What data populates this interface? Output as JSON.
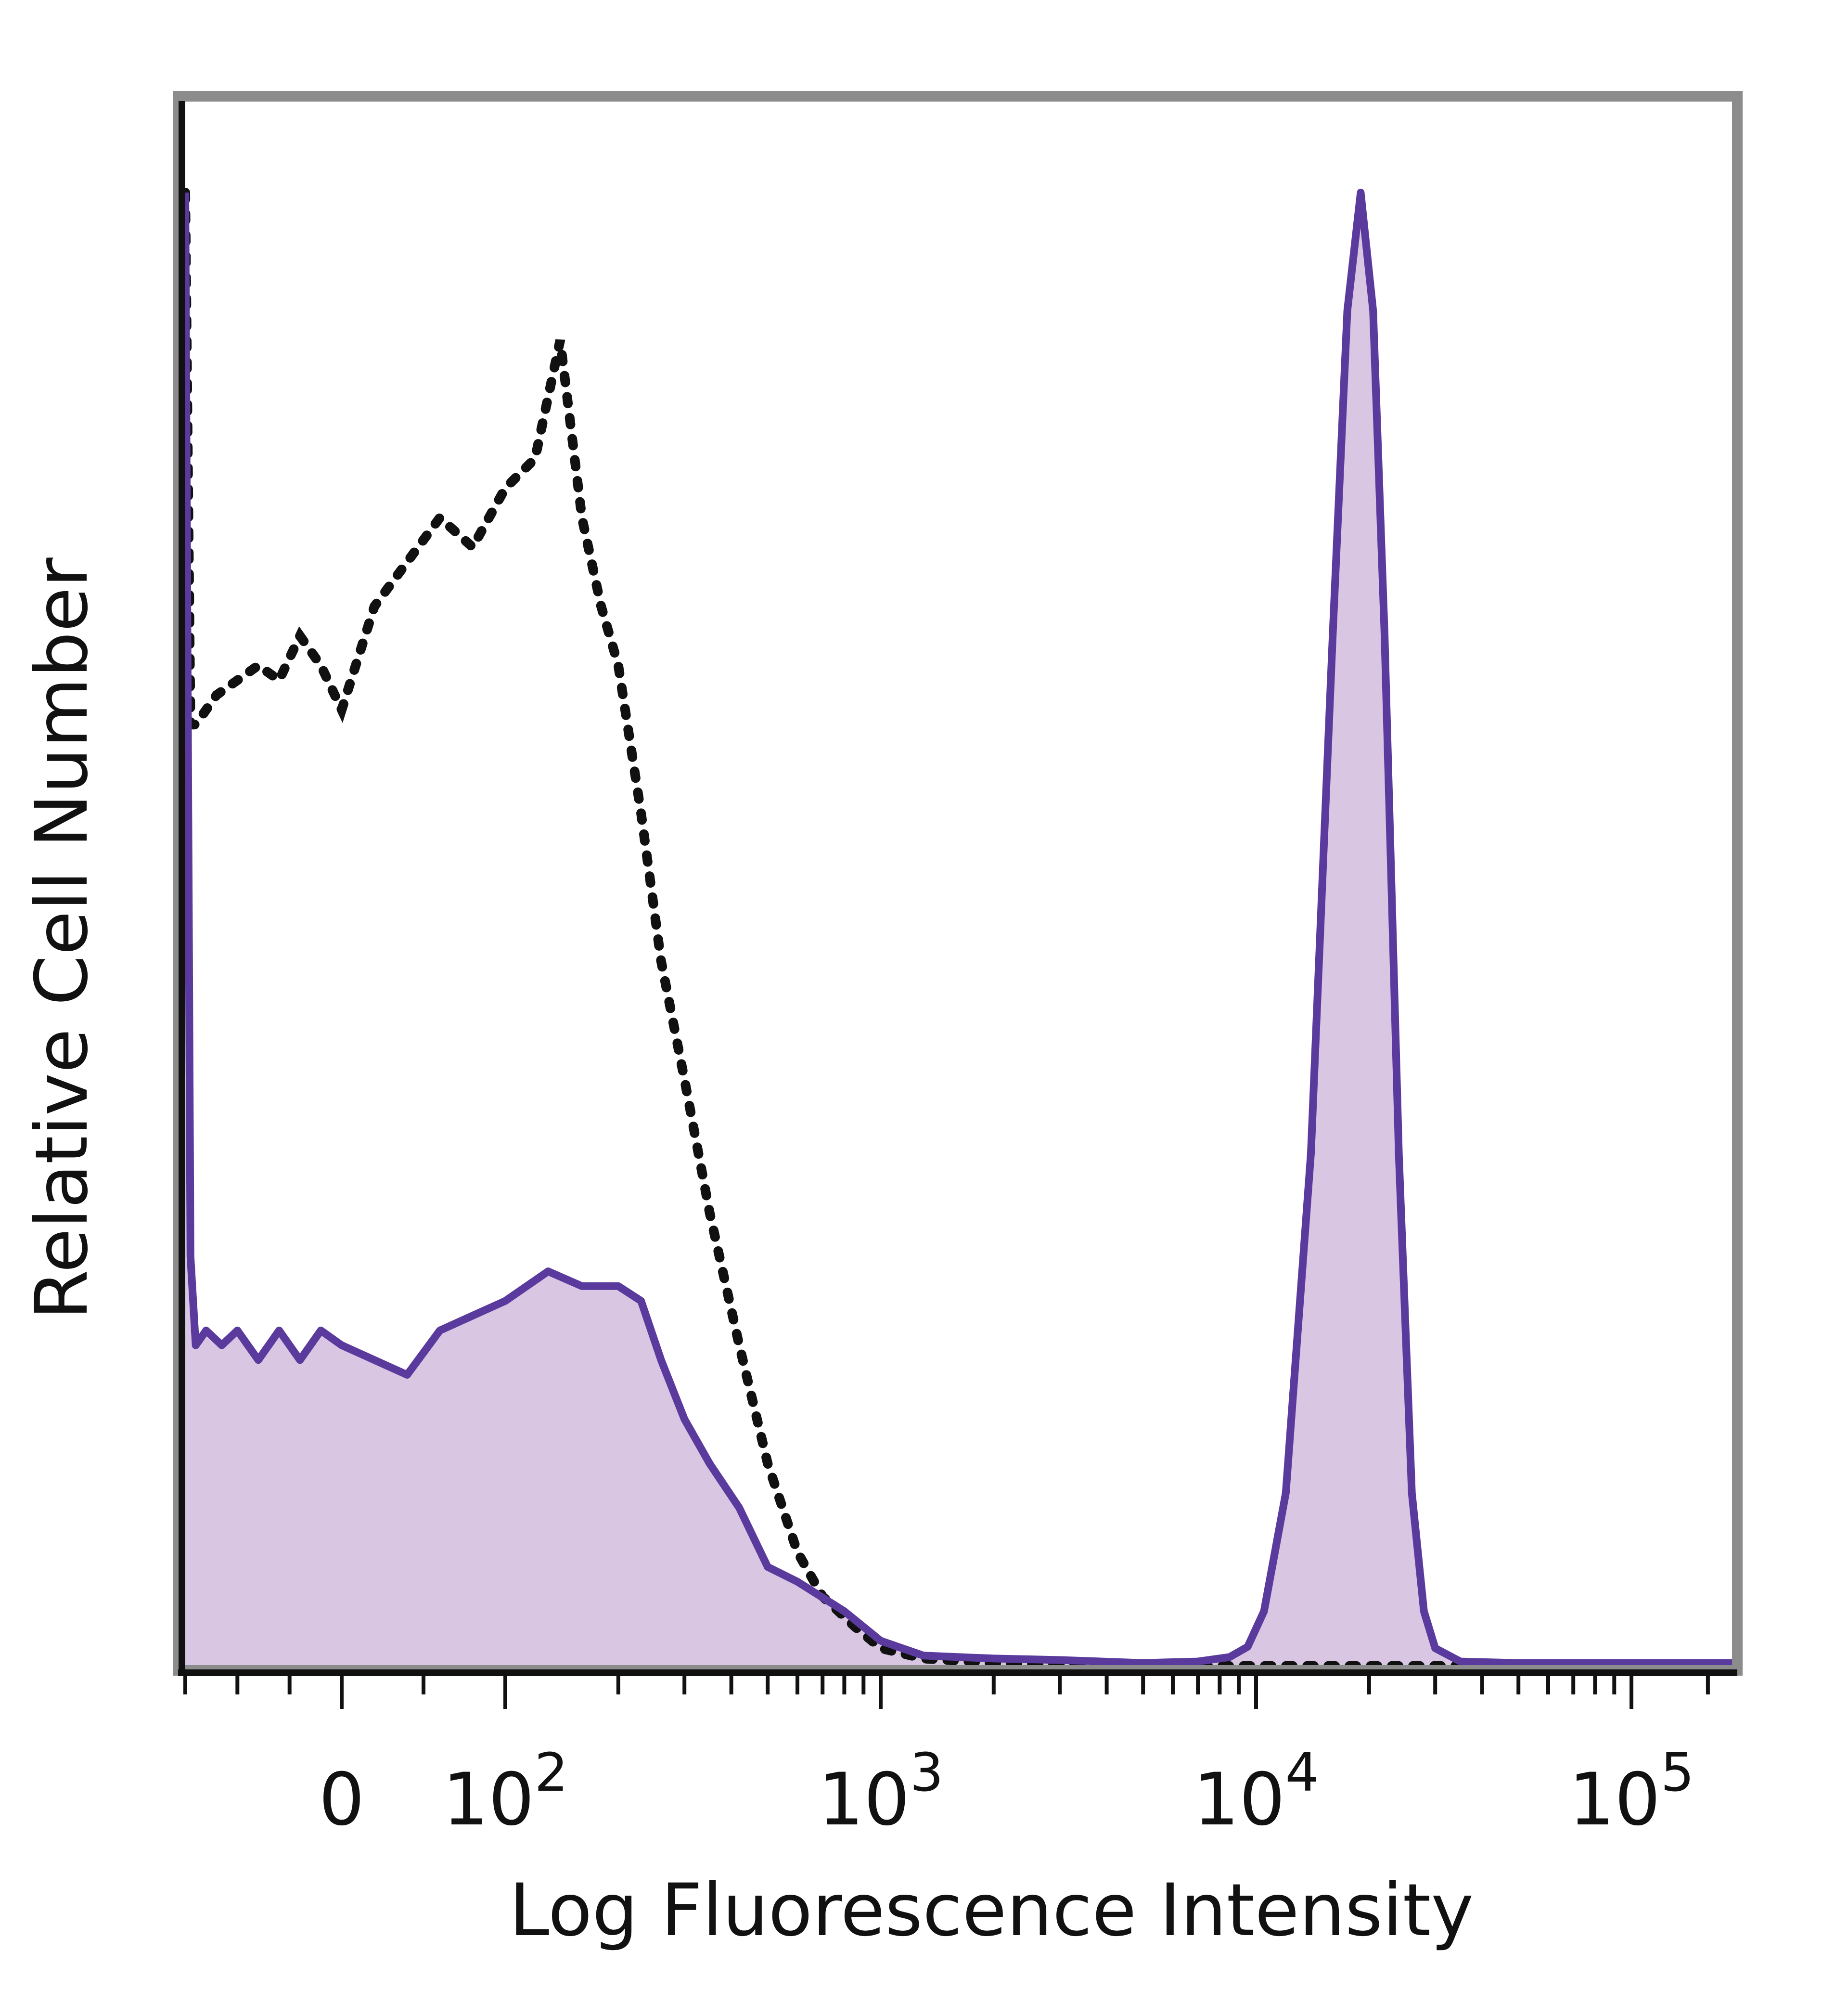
{
  "colors": {
    "background": "#ffffff",
    "frame": "#8c8c8c",
    "axis": "#111111",
    "sample_line": "#5b3a9e",
    "sample_fill": "#d9c6e2",
    "control_line": "#111111"
  },
  "chart_data": {
    "type": "area",
    "title": "",
    "xlabel": "Log Fluorescence Intensity",
    "ylabel": "Relative Cell Number",
    "x_scale": "biexponential (linear near 0, logarithmic above ~10^2)",
    "xlim": [
      -150,
      250000
    ],
    "ylim": [
      0,
      100
    ],
    "grid": false,
    "legend": "none",
    "x_ticks": [
      {
        "value": 0,
        "base": "0",
        "exp": ""
      },
      {
        "value": 100,
        "base": "10",
        "exp": "2"
      },
      {
        "value": 1000,
        "base": "10",
        "exp": "3"
      },
      {
        "value": 10000,
        "base": "10",
        "exp": "4"
      },
      {
        "value": 100000,
        "base": "10",
        "exp": "5"
      }
    ],
    "series": [
      {
        "style": "solid-filled",
        "x": [
          -150,
          -145,
          -140,
          -130,
          -115,
          -100,
          -80,
          -60,
          -40,
          -20,
          0,
          20,
          40,
          60,
          80,
          100,
          130,
          160,
          200,
          230,
          260,
          300,
          350,
          420,
          500,
          600,
          800,
          1000,
          1300,
          2000,
          3000,
          5000,
          7000,
          8500,
          9500,
          10500,
          12000,
          14000,
          16000,
          17500,
          19000,
          20500,
          22000,
          24000,
          26000,
          28000,
          30000,
          35000,
          50000,
          100000,
          250000
        ],
        "y": [
          100,
          28,
          22,
          23,
          22,
          23,
          21,
          23,
          21,
          23,
          22,
          21,
          20,
          23,
          24,
          25,
          27,
          26,
          26,
          25,
          21,
          17,
          14,
          11,
          7,
          6,
          4,
          2,
          1,
          0.8,
          0.7,
          0.5,
          0.6,
          0.9,
          1.6,
          4,
          12,
          35,
          70,
          92,
          100,
          92,
          70,
          35,
          12,
          4,
          1.5,
          0.6,
          0.5,
          0.5,
          0.5
        ]
      },
      {
        "style": "dotted",
        "x": [
          -150,
          -145,
          -140,
          -120,
          -100,
          -80,
          -60,
          -40,
          -20,
          0,
          20,
          40,
          60,
          80,
          100,
          120,
          140,
          160,
          180,
          200,
          230,
          260,
          300,
          350,
          420,
          500,
          600,
          700,
          850,
          1000,
          1300,
          2000,
          3000,
          5000,
          10000,
          50000,
          250000
        ],
        "y": [
          100,
          64,
          64,
          66,
          67,
          68,
          67,
          70,
          68,
          65,
          72,
          75,
          78,
          76,
          80,
          82,
          90,
          78,
          72,
          68,
          58,
          48,
          40,
          31,
          22,
          14,
          8,
          5,
          3,
          1.5,
          0.8,
          0.5,
          0.4,
          0.3,
          0.3,
          0.3,
          0.3
        ]
      }
    ]
  }
}
